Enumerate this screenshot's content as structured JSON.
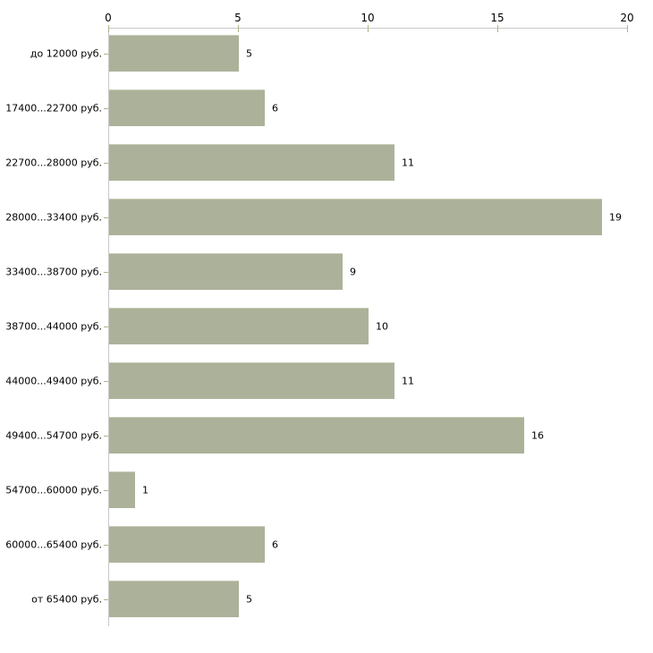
{
  "chart_data": {
    "type": "bar",
    "orientation": "horizontal",
    "title": "",
    "xlabel": "",
    "ylabel": "",
    "xlim": [
      0,
      20
    ],
    "x_ticks": [
      0,
      5,
      10,
      15,
      20
    ],
    "grid": false,
    "legend": false,
    "axis_position": "top",
    "categories": [
      "до 12000 руб.",
      "17400...22700 руб.",
      "22700...28000 руб.",
      "28000...33400 руб.",
      "33400...38700 руб.",
      "38700...44000 руб.",
      "44000...49400 руб.",
      "49400...54700 руб.",
      "54700...60000 руб.",
      "60000...65400 руб.",
      "от 65400 руб."
    ],
    "values": [
      5,
      6,
      11,
      19,
      9,
      10,
      11,
      16,
      1,
      6,
      5
    ],
    "colors": {
      "bar": "#acb29a",
      "bar_top_edge": "#c9cfba",
      "axis_line": "#c8c8c8",
      "tick": "#b2b286",
      "text": "#000000",
      "background": "#ffffff"
    }
  }
}
